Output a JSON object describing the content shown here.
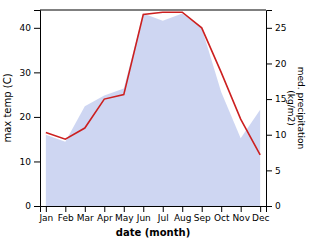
{
  "chart_data": {
    "type": "line",
    "categories": [
      "Jan",
      "Feb",
      "Mar",
      "Apr",
      "May",
      "Jun",
      "Jul",
      "Aug",
      "Sep",
      "Oct",
      "Nov",
      "Dec"
    ],
    "xlabel": "date (month)",
    "ylabel": "max temp (C)",
    "y2label": "med. precipitation\n(kg/m2)",
    "series": [
      {
        "type": "area",
        "axis": "y2",
        "color": "#c5cff0",
        "values": [
          10.0,
          9.0,
          14.0,
          15.5,
          16.5,
          27.0,
          26.0,
          27.0,
          25.0,
          16.0,
          9.5,
          13.5
        ]
      },
      {
        "type": "line",
        "color": "#cc2020",
        "values": [
          16.5,
          15.0,
          17.5,
          24.0,
          25.0,
          43.0,
          43.5,
          43.5,
          40.0,
          30.0,
          19.5,
          11.5
        ]
      }
    ],
    "ylim": [
      0,
      44
    ],
    "yticks": [
      0,
      10,
      20,
      30,
      40
    ],
    "y2lim": [
      0,
      27.5
    ],
    "y2ticks": [
      0,
      5,
      10,
      15,
      20,
      25
    ],
    "grid": false
  }
}
